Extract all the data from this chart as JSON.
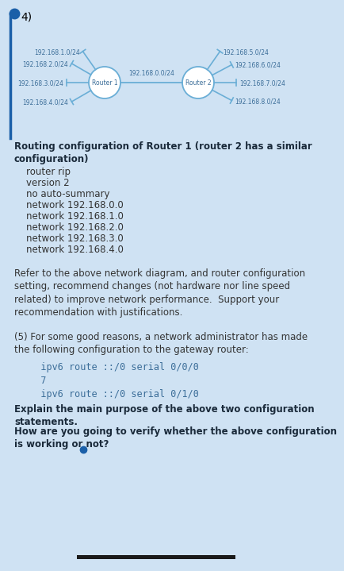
{
  "bg_color": "#cfe2f3",
  "question_num": "4)",
  "dot_color": "#1a5fa8",
  "router1_label": "Router 1",
  "router2_label": "Router 2",
  "link_label": "192.168.0.0/24",
  "r1_networks": [
    "192.168.1.0/24",
    "192.168.2.0/24",
    "192.168.3.0/24",
    "192.168.4.0/24"
  ],
  "r2_networks": [
    "192.168.5.0/24",
    "192.168.6.0/24",
    "192.168.7.0/24",
    "192.168.8.0/24"
  ],
  "heading_bold": "Routing configuration of Router 1 (router 2 has a similar\nconfiguration)",
  "config_lines": [
    "    router rip",
    "    version 2",
    "    no auto-summary",
    "    network 192.168.0.0",
    "    network 192.168.1.0",
    "    network 192.168.2.0",
    "    network 192.168.3.0",
    "    network 192.168.4.0"
  ],
  "body_text": "Refer to the above network diagram, and router configuration\nsetting, recommend changes (not hardware nor line speed\nrelated) to improve network performance.  Support your\nrecommendation with justifications.",
  "q5_intro": "(5) For some good reasons, a network administrator has made\nthe following configuration to the gateway router:",
  "code_lines": [
    "   ipv6 route ::/0 serial 0/0/0",
    "   7",
    "   ipv6 route ::/0 serial 0/1/0"
  ],
  "bold_q1": "Explain the main purpose of the above two configuration\nstatements.",
  "bold_q2": "How are you going to verify whether the above configuration\nis working or not?",
  "bottom_bar_color": "#1a1a1a",
  "blue_dot_color": "#1a5fa8",
  "line_color": "#6aaed6",
  "router_text_color": "#3c6e99",
  "label_color": "#3c6e99",
  "body_text_color": "#333333",
  "bold_text_color": "#1a2a3a"
}
